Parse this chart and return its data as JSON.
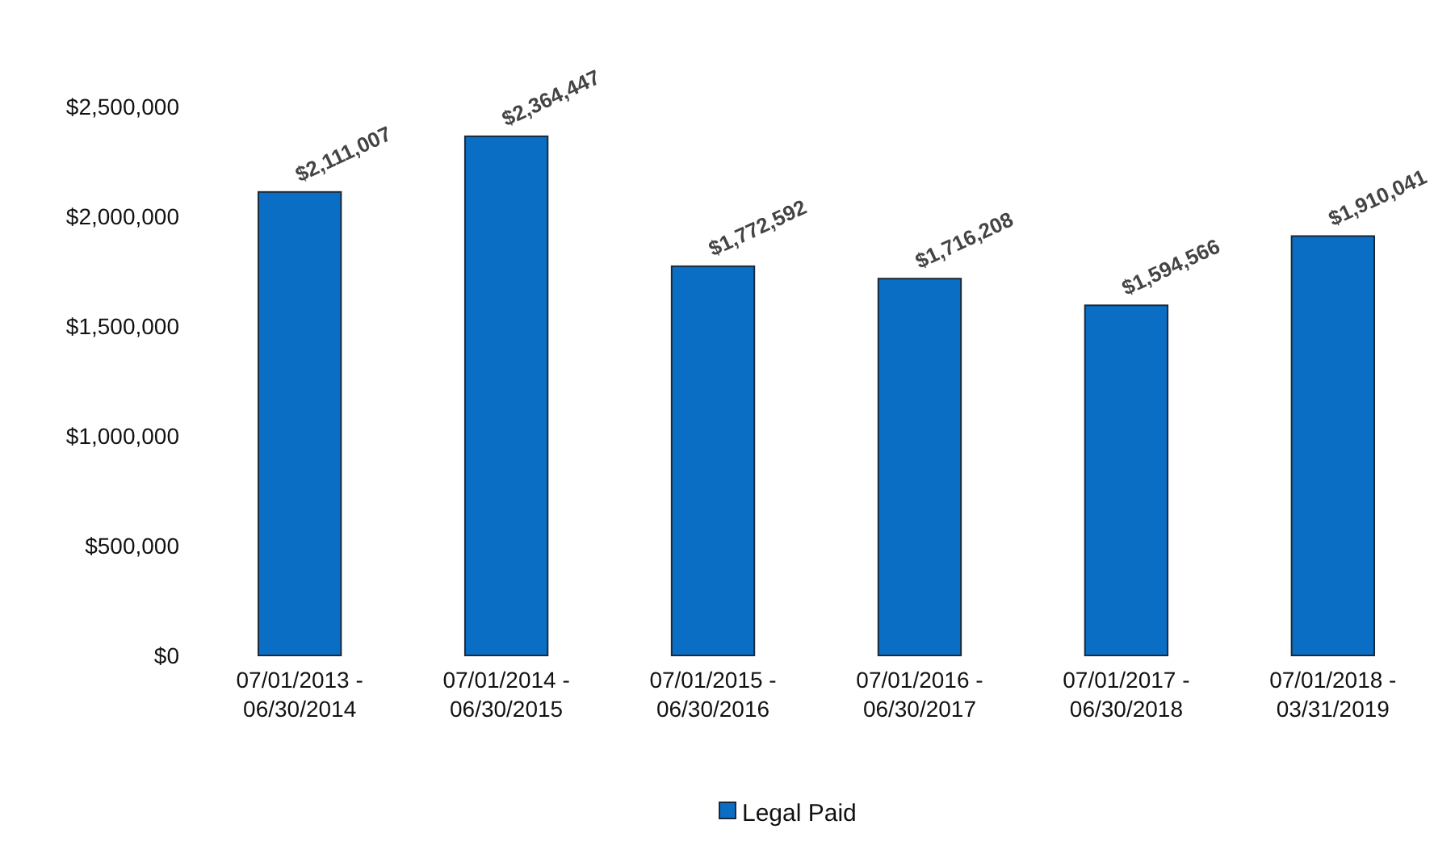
{
  "chart_data": {
    "type": "bar",
    "categories": [
      "07/01/2013 - 06/30/2014",
      "07/01/2014 - 06/30/2015",
      "07/01/2015 - 06/30/2016",
      "07/01/2016 - 06/30/2017",
      "07/01/2017 - 06/30/2018",
      "07/01/2018 - 03/31/2019"
    ],
    "series": [
      {
        "name": "Legal Paid",
        "color": "#0a6fc4",
        "values": [
          2111007,
          2364447,
          1772592,
          1716208,
          1594566,
          1910041
        ],
        "value_labels": [
          "$2,111,007",
          "$2,364,447",
          "$1,772,592",
          "$1,716,208",
          "$1,594,566",
          "$1,910,041"
        ]
      }
    ],
    "ylim": [
      0,
      2500000
    ],
    "yticks": [
      {
        "value": 0,
        "label": "$0"
      },
      {
        "value": 500000,
        "label": "$500,000"
      },
      {
        "value": 1000000,
        "label": "$1,000,000"
      },
      {
        "value": 1500000,
        "label": "$1,500,000"
      },
      {
        "value": 2000000,
        "label": "$2,000,000"
      },
      {
        "value": 2500000,
        "label": "$2,500,000"
      }
    ],
    "legend": "bottom"
  }
}
